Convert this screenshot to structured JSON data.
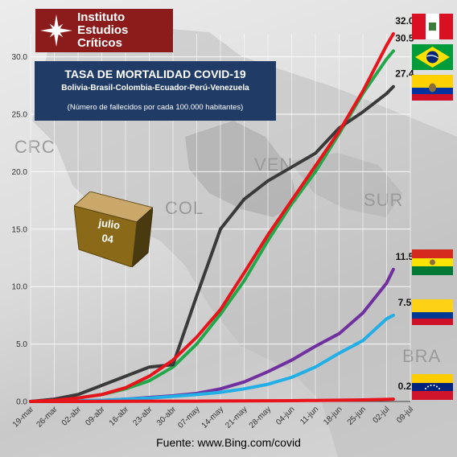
{
  "logo": {
    "line1": "Instituto",
    "line2": "Estudios Críticos"
  },
  "header": {
    "title": "TASA DE MORTALIDAD COVID-19",
    "subtitle": "Bolivia-Brasil-Colombia-Ecuador-Perú-Venezuela",
    "note": "(Número de fallecidos por cada 100.000 habitantes)"
  },
  "badge": {
    "line1": "julio",
    "line2": "04"
  },
  "source": "Fuente: www.Bing.com/covid",
  "map_labels": [
    "CRC",
    "VEN",
    "COL",
    "SUR",
    "BRA"
  ],
  "chart_data": {
    "type": "line",
    "x_ticks": [
      "19-mar",
      "26-mar",
      "02-abr",
      "09-abr",
      "16-abr",
      "23-abr",
      "30-abr",
      "07-may",
      "14-may",
      "21-may",
      "28-may",
      "04-jun",
      "11-jun",
      "18-jun",
      "25-jun",
      "02-jul",
      "09-jul"
    ],
    "y_ticks": [
      "0.0",
      "5.0",
      "10.0",
      "15.0",
      "20.0",
      "25.0",
      "30.0"
    ],
    "ylim": [
      0,
      32
    ],
    "grid": true,
    "x_start": "19-mar",
    "series": [
      {
        "country": "Perú",
        "color": "#e8141c",
        "end_label": "32.0",
        "flag": "peru",
        "x": [
          "19-mar",
          "26-mar",
          "02-abr",
          "09-abr",
          "16-abr",
          "23-abr",
          "30-abr",
          "07-may",
          "14-may",
          "21-may",
          "28-may",
          "04-jun",
          "11-jun",
          "18-jun",
          "25-jun",
          "02-jul",
          "04-jul"
        ],
        "y": [
          0,
          0.1,
          0.3,
          0.6,
          1.2,
          2.2,
          3.6,
          5.6,
          8.0,
          11.2,
          14.5,
          17.5,
          20.5,
          23.5,
          27.0,
          31.0,
          32.0
        ]
      },
      {
        "country": "Brasil",
        "color": "#22a84a",
        "end_label": "30.5",
        "flag": "brazil",
        "x": [
          "19-mar",
          "26-mar",
          "02-abr",
          "09-abr",
          "16-abr",
          "23-abr",
          "30-abr",
          "07-may",
          "14-may",
          "21-may",
          "28-may",
          "04-jun",
          "11-jun",
          "18-jun",
          "25-jun",
          "02-jul",
          "04-jul"
        ],
        "y": [
          0,
          0.1,
          0.3,
          0.6,
          1.1,
          1.8,
          3.0,
          5.0,
          7.6,
          10.5,
          14.0,
          17.2,
          20.0,
          23.3,
          26.8,
          29.8,
          30.5
        ]
      },
      {
        "country": "Ecuador",
        "color": "#3a3a3a",
        "end_label": "27.4",
        "flag": "ecuador",
        "x": [
          "19-mar",
          "26-mar",
          "02-abr",
          "09-abr",
          "16-abr",
          "23-abr",
          "30-abr",
          "07-may",
          "14-may",
          "21-may",
          "28-may",
          "04-jun",
          "11-jun",
          "18-jun",
          "25-jun",
          "02-jul",
          "04-jul"
        ],
        "y": [
          0,
          0.2,
          0.6,
          1.4,
          2.2,
          3.0,
          3.2,
          9.2,
          15.0,
          17.6,
          19.2,
          20.4,
          21.6,
          23.8,
          25.2,
          26.8,
          27.4
        ]
      },
      {
        "country": "Bolivia",
        "color": "#7030a0",
        "end_label": "11.5",
        "flag": "bolivia",
        "x": [
          "19-mar",
          "26-mar",
          "02-abr",
          "09-abr",
          "16-abr",
          "23-abr",
          "30-abr",
          "07-may",
          "14-may",
          "21-may",
          "28-may",
          "04-jun",
          "11-jun",
          "18-jun",
          "25-jun",
          "02-jul",
          "04-jul"
        ],
        "y": [
          0,
          0.0,
          0.05,
          0.1,
          0.2,
          0.35,
          0.5,
          0.7,
          1.1,
          1.7,
          2.6,
          3.6,
          4.8,
          5.9,
          7.7,
          10.3,
          11.5
        ]
      },
      {
        "country": "Colombia",
        "color": "#22aee6",
        "end_label": "7.5",
        "flag": "colombia",
        "x": [
          "19-mar",
          "26-mar",
          "02-abr",
          "09-abr",
          "16-abr",
          "23-abr",
          "30-abr",
          "07-may",
          "14-may",
          "21-may",
          "28-may",
          "04-jun",
          "11-jun",
          "18-jun",
          "25-jun",
          "02-jul",
          "04-jul"
        ],
        "y": [
          0,
          0.0,
          0.05,
          0.1,
          0.2,
          0.3,
          0.45,
          0.6,
          0.8,
          1.1,
          1.5,
          2.1,
          3.0,
          4.2,
          5.3,
          7.2,
          7.5
        ]
      },
      {
        "country": "Venezuela",
        "color": "#e8141c",
        "end_label": "0.2",
        "flag": "venezuela",
        "x": [
          "19-mar",
          "26-mar",
          "02-abr",
          "09-abr",
          "16-abr",
          "23-abr",
          "30-abr",
          "07-may",
          "14-may",
          "21-may",
          "28-may",
          "04-jun",
          "11-jun",
          "18-jun",
          "25-jun",
          "02-jul",
          "04-jul"
        ],
        "y": [
          0,
          0,
          0,
          0.01,
          0.02,
          0.03,
          0.03,
          0.03,
          0.04,
          0.05,
          0.06,
          0.07,
          0.09,
          0.11,
          0.14,
          0.18,
          0.2
        ]
      }
    ]
  }
}
